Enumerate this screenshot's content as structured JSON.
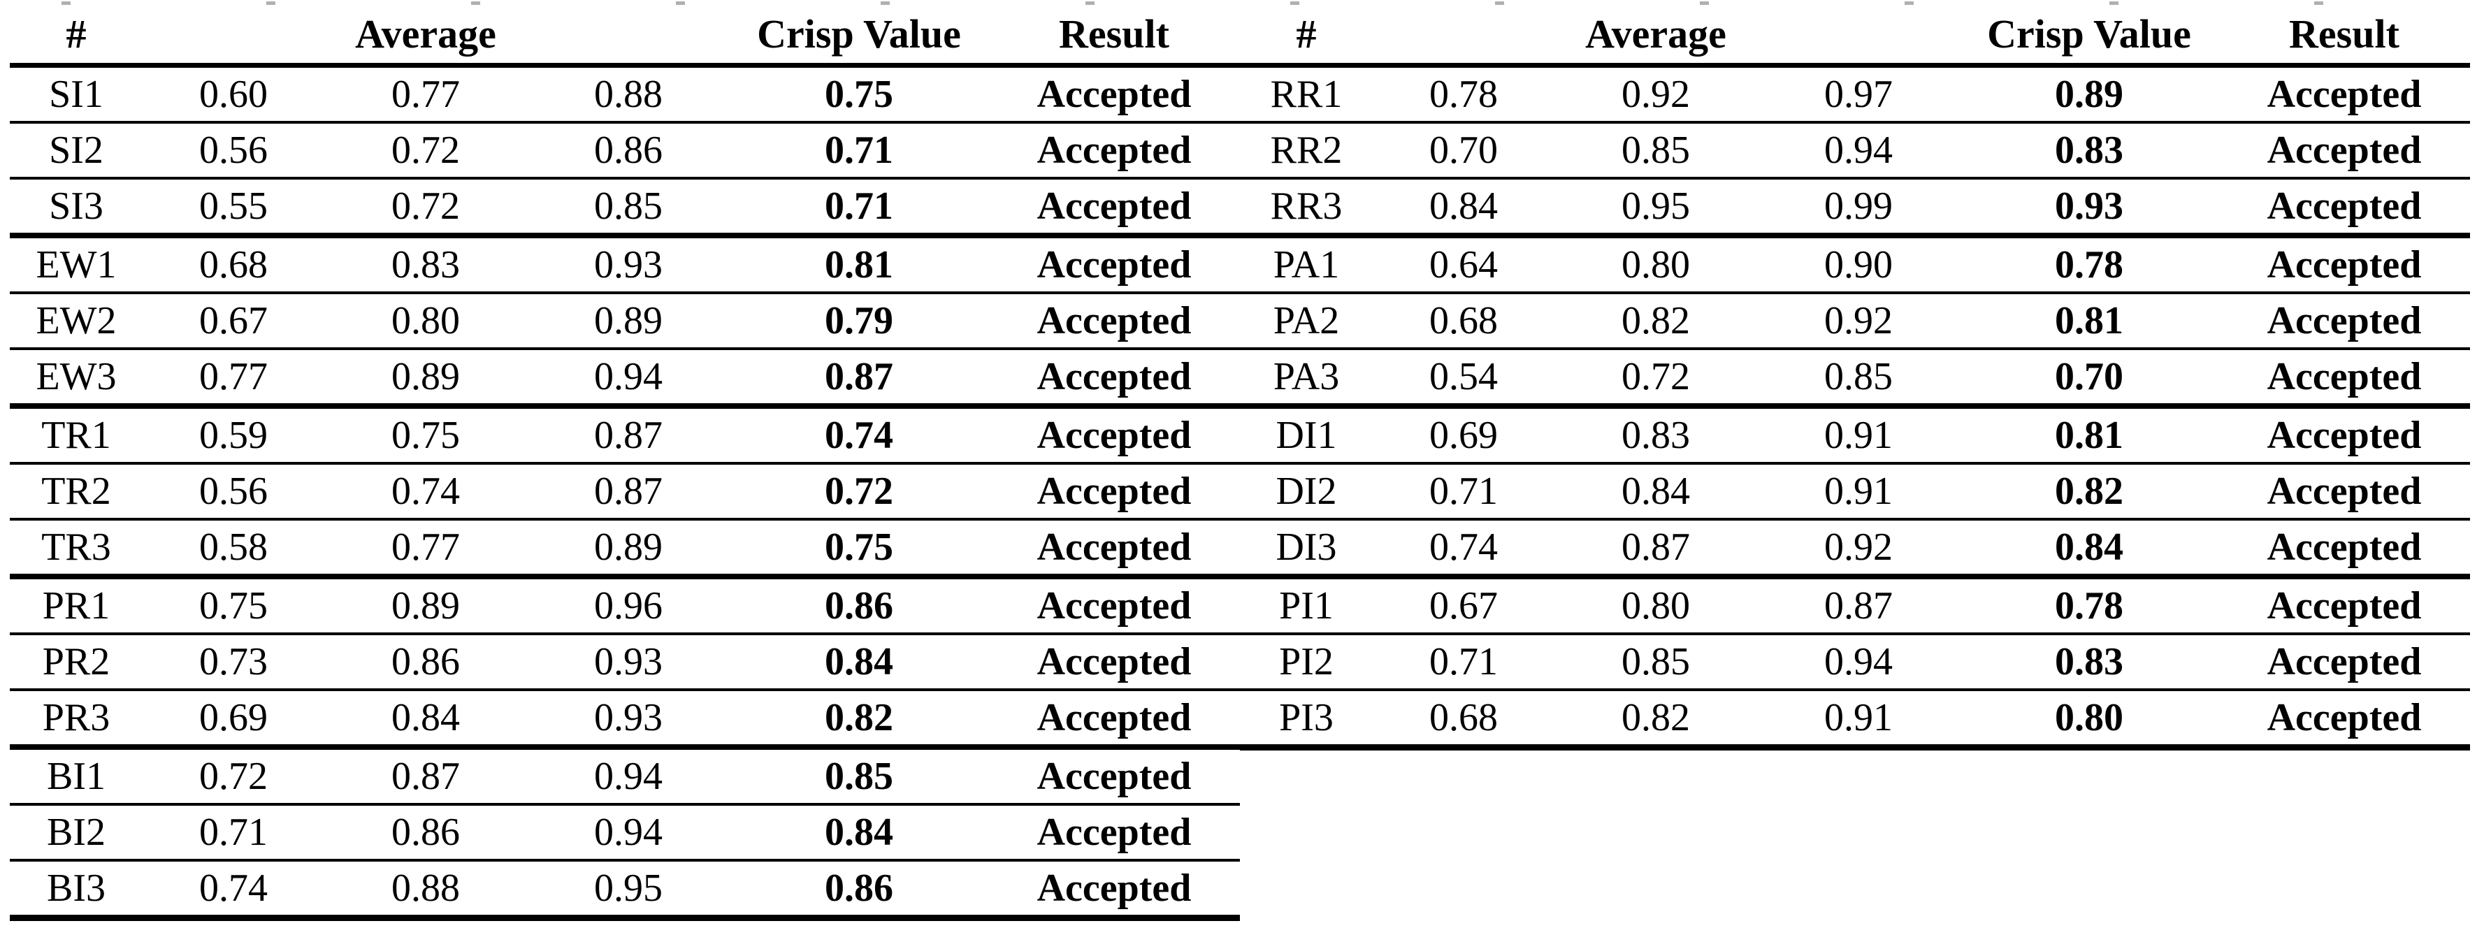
{
  "colors": {
    "background": "#ffffff",
    "text": "#000000",
    "rule": "#000000",
    "top_artifact": "#b0b0b0"
  },
  "headers": [
    "#",
    "",
    "Average",
    "",
    "Crisp Value",
    "Result"
  ],
  "left_table": {
    "rows": [
      {
        "id": "SI1",
        "values": [
          "0.60",
          "0.77",
          "0.88"
        ],
        "crisp": "0.75",
        "result": "Accepted"
      },
      {
        "id": "SI2",
        "values": [
          "0.56",
          "0.72",
          "0.86"
        ],
        "crisp": "0.71",
        "result": "Accepted"
      },
      {
        "id": "SI3",
        "values": [
          "0.55",
          "0.72",
          "0.85"
        ],
        "crisp": "0.71",
        "result": "Accepted"
      },
      {
        "id": "EW1",
        "values": [
          "0.68",
          "0.83",
          "0.93"
        ],
        "crisp": "0.81",
        "result": "Accepted"
      },
      {
        "id": "EW2",
        "values": [
          "0.67",
          "0.80",
          "0.89"
        ],
        "crisp": "0.79",
        "result": "Accepted"
      },
      {
        "id": "EW3",
        "values": [
          "0.77",
          "0.89",
          "0.94"
        ],
        "crisp": "0.87",
        "result": "Accepted"
      },
      {
        "id": "TR1",
        "values": [
          "0.59",
          "0.75",
          "0.87"
        ],
        "crisp": "0.74",
        "result": "Accepted"
      },
      {
        "id": "TR2",
        "values": [
          "0.56",
          "0.74",
          "0.87"
        ],
        "crisp": "0.72",
        "result": "Accepted"
      },
      {
        "id": "TR3",
        "values": [
          "0.58",
          "0.77",
          "0.89"
        ],
        "crisp": "0.75",
        "result": "Accepted"
      },
      {
        "id": "PR1",
        "values": [
          "0.75",
          "0.89",
          "0.96"
        ],
        "crisp": "0.86",
        "result": "Accepted"
      },
      {
        "id": "PR2",
        "values": [
          "0.73",
          "0.86",
          "0.93"
        ],
        "crisp": "0.84",
        "result": "Accepted"
      },
      {
        "id": "PR3",
        "values": [
          "0.69",
          "0.84",
          "0.93"
        ],
        "crisp": "0.82",
        "result": "Accepted"
      },
      {
        "id": "BI1",
        "values": [
          "0.72",
          "0.87",
          "0.94"
        ],
        "crisp": "0.85",
        "result": "Accepted"
      },
      {
        "id": "BI2",
        "values": [
          "0.71",
          "0.86",
          "0.94"
        ],
        "crisp": "0.84",
        "result": "Accepted"
      },
      {
        "id": "BI3",
        "values": [
          "0.74",
          "0.88",
          "0.95"
        ],
        "crisp": "0.86",
        "result": "Accepted"
      }
    ]
  },
  "right_table": {
    "rows": [
      {
        "id": "RR1",
        "values": [
          "0.78",
          "0.92",
          "0.97"
        ],
        "crisp": "0.89",
        "result": "Accepted"
      },
      {
        "id": "RR2",
        "values": [
          "0.70",
          "0.85",
          "0.94"
        ],
        "crisp": "0.83",
        "result": "Accepted"
      },
      {
        "id": "RR3",
        "values": [
          "0.84",
          "0.95",
          "0.99"
        ],
        "crisp": "0.93",
        "result": "Accepted"
      },
      {
        "id": "PA1",
        "values": [
          "0.64",
          "0.80",
          "0.90"
        ],
        "crisp": "0.78",
        "result": "Accepted"
      },
      {
        "id": "PA2",
        "values": [
          "0.68",
          "0.82",
          "0.92"
        ],
        "crisp": "0.81",
        "result": "Accepted"
      },
      {
        "id": "PA3",
        "values": [
          "0.54",
          "0.72",
          "0.85"
        ],
        "crisp": "0.70",
        "result": "Accepted"
      },
      {
        "id": "DI1",
        "values": [
          "0.69",
          "0.83",
          "0.91"
        ],
        "crisp": "0.81",
        "result": "Accepted"
      },
      {
        "id": "DI2",
        "values": [
          "0.71",
          "0.84",
          "0.91"
        ],
        "crisp": "0.82",
        "result": "Accepted"
      },
      {
        "id": "DI3",
        "values": [
          "0.74",
          "0.87",
          "0.92"
        ],
        "crisp": "0.84",
        "result": "Accepted"
      },
      {
        "id": "PI1",
        "values": [
          "0.67",
          "0.80",
          "0.87"
        ],
        "crisp": "0.78",
        "result": "Accepted"
      },
      {
        "id": "PI2",
        "values": [
          "0.71",
          "0.85",
          "0.94"
        ],
        "crisp": "0.83",
        "result": "Accepted"
      },
      {
        "id": "PI3",
        "values": [
          "0.68",
          "0.82",
          "0.91"
        ],
        "crisp": "0.80",
        "result": "Accepted"
      }
    ]
  }
}
